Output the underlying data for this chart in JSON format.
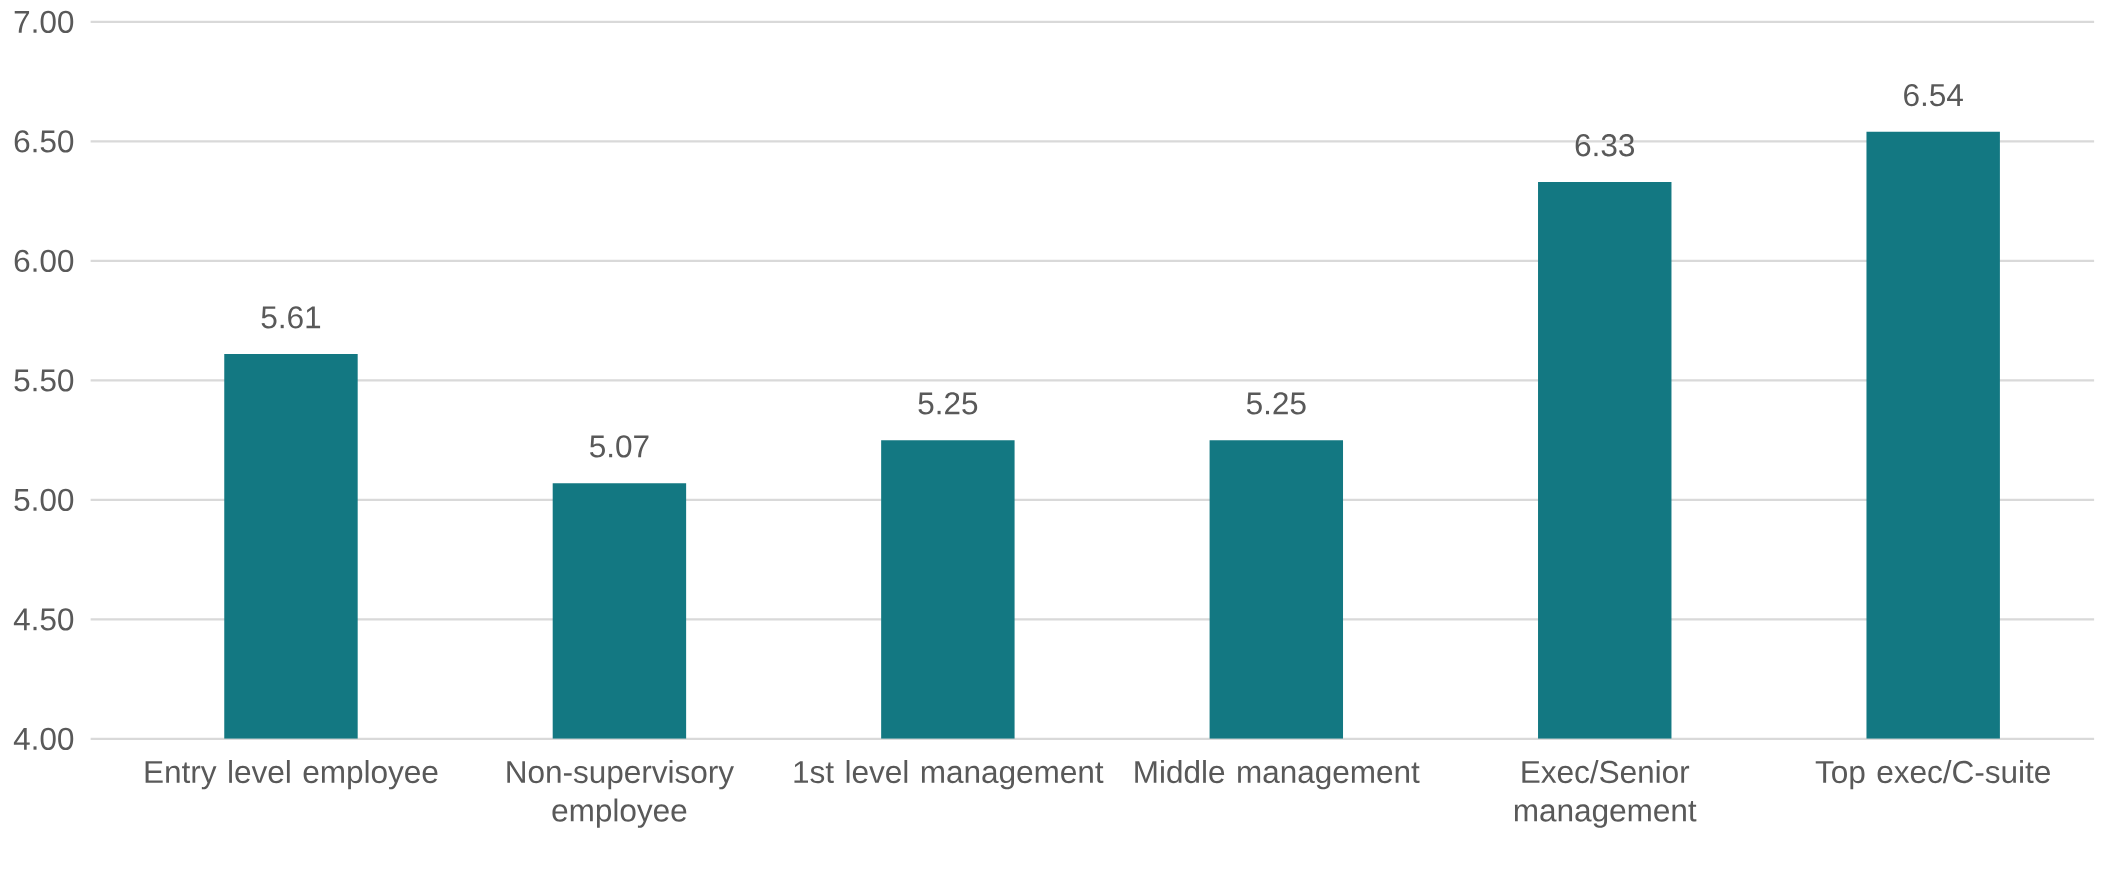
{
  "chart_data": {
    "type": "bar",
    "categories": [
      "Entry level employee",
      "Non-supervisory employee",
      "1st level management",
      "Middle management",
      "Exec/Senior management",
      "Top exec/C-suite"
    ],
    "values": [
      5.61,
      5.07,
      5.25,
      5.25,
      6.33,
      6.54
    ],
    "color": "#137882",
    "ylim": [
      4,
      7
    ],
    "yticks": [
      {
        "value": 4,
        "label": "4.00"
      },
      {
        "value": 4.5,
        "label": "4.50"
      },
      {
        "value": 5,
        "label": "5.00"
      },
      {
        "value": 5.5,
        "label": "5.50"
      },
      {
        "value": 6,
        "label": "6.00"
      },
      {
        "value": 6.5,
        "label": "6.50"
      },
      {
        "value": 7,
        "label": "7.00"
      }
    ],
    "grid": "y",
    "data_labels": true
  }
}
